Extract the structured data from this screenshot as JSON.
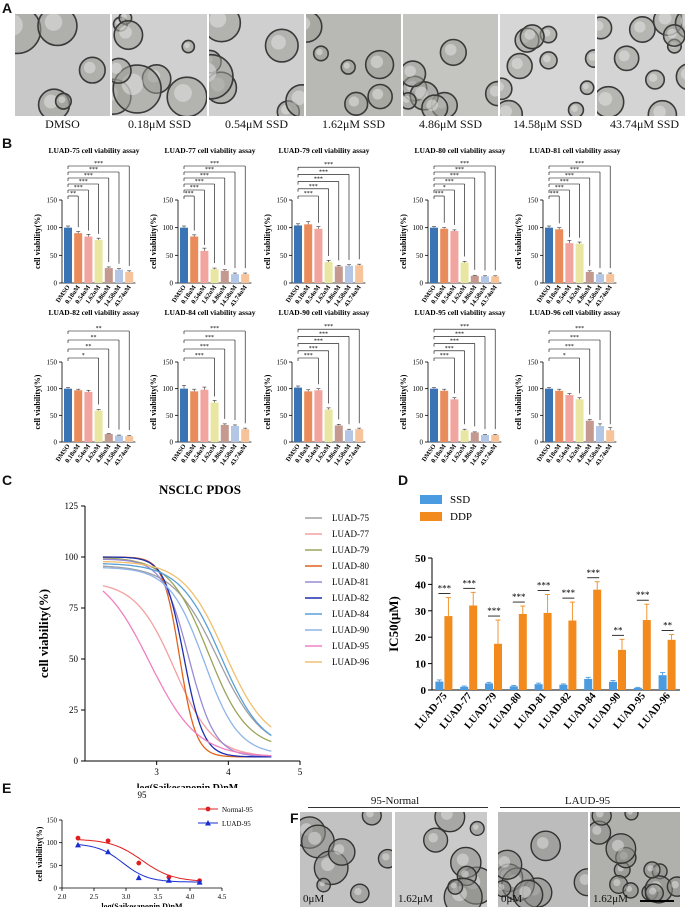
{
  "panels": {
    "A": "A",
    "B": "B",
    "C": "C",
    "D": "D",
    "E": "E",
    "F": "F"
  },
  "panelA": {
    "labels": [
      "DMSO",
      "0.18μM SSD",
      "0.54μM SSD",
      "1.62μM SSD",
      "4.86μM SSD",
      "14.58μM SSD",
      "43.74μM SSD"
    ]
  },
  "panelB": {
    "ylabel": "cell viability(%)",
    "yticks": [
      "0",
      "50",
      "100",
      "150"
    ],
    "xticks": [
      "DMSO",
      "0.18uM",
      "0.54uM",
      "1.62uM",
      "4.86uM",
      "14.58uM",
      "43.74uM"
    ],
    "bar_colors": [
      "#3a74b4",
      "#e98b5a",
      "#f2a59e",
      "#e8e6a0",
      "#c49a90",
      "#b4c6e6",
      "#f7c39a"
    ]
  },
  "chart_data": [
    {
      "type": "bar",
      "id": "luad75",
      "title": "LUAD-75 cell viability assay",
      "categories": [
        "DMSO",
        "0.18uM",
        "0.54uM",
        "1.62uM",
        "4.86uM",
        "14.58uM",
        "43.74uM"
      ],
      "values": [
        100,
        90,
        84,
        78,
        27,
        24,
        20
      ],
      "errors": [
        3,
        3,
        4,
        3,
        2,
        2,
        2
      ],
      "ylim": [
        0,
        150
      ],
      "significance": [
        "**",
        "***",
        "***",
        "***",
        "***",
        "***"
      ]
    },
    {
      "type": "bar",
      "id": "luad77",
      "title": "LUAD-77 cell viability assay",
      "categories": [
        "DMSO",
        "0.18uM",
        "0.54uM",
        "1.62uM",
        "4.86uM",
        "14.58uM",
        "43.74uM"
      ],
      "values": [
        100,
        84,
        58,
        25,
        22,
        16,
        16
      ],
      "errors": [
        3,
        3,
        5,
        2,
        2,
        2,
        2
      ],
      "ylim": [
        0,
        150
      ],
      "significance": [
        "***",
        "***",
        "***",
        "***",
        "***",
        "***"
      ]
    },
    {
      "type": "bar",
      "id": "luad79",
      "title": "LUAD-79 cell viability assay",
      "categories": [
        "DMSO",
        "0.18uM",
        "0.54uM",
        "1.62uM",
        "4.86uM",
        "14.58uM",
        "43.74uM"
      ],
      "values": [
        104,
        106,
        98,
        38,
        30,
        31,
        32
      ],
      "errors": [
        3,
        5,
        4,
        3,
        2,
        2,
        2
      ],
      "ylim": [
        0,
        150
      ],
      "significance": [
        "***",
        "***",
        "***",
        "***",
        "***"
      ]
    },
    {
      "type": "bar",
      "id": "luad80",
      "title": "LUAD-80 cell viability assay",
      "categories": [
        "DMSO",
        "0.18uM",
        "0.54uM",
        "1.62uM",
        "4.86uM",
        "14.58uM",
        "43.74uM"
      ],
      "values": [
        100,
        98,
        94,
        37,
        13,
        12,
        12
      ],
      "errors": [
        2,
        2,
        2,
        2,
        1,
        1,
        1
      ],
      "ylim": [
        0,
        150
      ],
      "significance": [
        "***",
        "*",
        "***",
        "***",
        "***",
        "***"
      ]
    },
    {
      "type": "bar",
      "id": "luad81",
      "title": "LUAD-81 cell viability assay",
      "categories": [
        "DMSO",
        "0.18uM",
        "0.54uM",
        "1.62uM",
        "4.86uM",
        "14.58uM",
        "43.74uM"
      ],
      "values": [
        100,
        97,
        72,
        71,
        20,
        16,
        16
      ],
      "errors": [
        3,
        3,
        5,
        3,
        2,
        2,
        2
      ],
      "ylim": [
        0,
        150
      ],
      "significance": [
        "***",
        "***",
        "***",
        "***",
        "***",
        "***"
      ]
    },
    {
      "type": "bar",
      "id": "luad82",
      "title": "LUAD-82 cell viability assay",
      "categories": [
        "DMSO",
        "0.18uM",
        "0.54uM",
        "1.62uM",
        "4.86uM",
        "14.58uM",
        "43.74uM"
      ],
      "values": [
        100,
        97,
        94,
        59,
        15,
        12,
        11
      ],
      "errors": [
        2,
        2,
        3,
        2,
        1,
        1,
        1
      ],
      "ylim": [
        0,
        150
      ],
      "significance": [
        "*",
        "**",
        "**",
        "**"
      ]
    },
    {
      "type": "bar",
      "id": "luad84",
      "title": "LUAD-84 cell viability assay",
      "categories": [
        "DMSO",
        "0.18uM",
        "0.54uM",
        "1.62uM",
        "4.86uM",
        "14.58uM",
        "43.74uM"
      ],
      "values": [
        100,
        95,
        98,
        74,
        32,
        30,
        24
      ],
      "errors": [
        6,
        4,
        5,
        4,
        2,
        2,
        2
      ],
      "ylim": [
        0,
        150
      ],
      "significance": [
        "***",
        "***",
        "***",
        "***"
      ]
    },
    {
      "type": "bar",
      "id": "luad90",
      "title": "LUAD-90 cell viability assay",
      "categories": [
        "DMSO",
        "0.18uM",
        "0.54uM",
        "1.62uM",
        "4.86uM",
        "14.58uM",
        "43.74uM"
      ],
      "values": [
        102,
        95,
        97,
        61,
        31,
        22,
        24
      ],
      "errors": [
        3,
        3,
        3,
        3,
        2,
        2,
        2
      ],
      "ylim": [
        0,
        150
      ],
      "significance": [
        "***",
        "***",
        "***",
        "***",
        "***"
      ]
    },
    {
      "type": "bar",
      "id": "luad95",
      "title": "LUAD-95 cell viability assay",
      "categories": [
        "DMSO",
        "0.18uM",
        "0.54uM",
        "1.62uM",
        "4.86uM",
        "14.58uM",
        "43.74uM"
      ],
      "values": [
        100,
        96,
        80,
        22,
        18,
        13,
        13
      ],
      "errors": [
        2,
        3,
        3,
        2,
        1,
        1,
        1
      ],
      "ylim": [
        0,
        150
      ],
      "significance": [
        "***",
        "***",
        "***",
        "***",
        "***"
      ]
    },
    {
      "type": "bar",
      "id": "luad96",
      "title": "LUAD-96 cell viability assay",
      "categories": [
        "DMSO",
        "0.18uM",
        "0.54uM",
        "1.62uM",
        "4.86uM",
        "14.58uM",
        "43.74uM"
      ],
      "values": [
        100,
        96,
        88,
        80,
        40,
        30,
        22
      ],
      "errors": [
        2,
        3,
        3,
        3,
        2,
        4,
        5
      ],
      "ylim": [
        0,
        150
      ],
      "significance": [
        "*",
        "***",
        "***",
        "***"
      ]
    },
    {
      "type": "line",
      "id": "nsclc",
      "title": "NSCLC PDOS",
      "xlabel": "log(Saikosaponin D)nM",
      "ylabel": "cell viability(%)",
      "xlim": [
        2,
        5
      ],
      "ylim": [
        0,
        125
      ],
      "xticks": [
        3,
        4,
        5
      ],
      "yticks": [
        0,
        25,
        50,
        75,
        100,
        125
      ],
      "series": [
        {
          "name": "LUAD-75",
          "color": "#a0a0a0",
          "top": 96,
          "bottom": 5,
          "ec50": 3.85,
          "hill": 1.4
        },
        {
          "name": "LUAD-77",
          "color": "#f4a0a0",
          "top": 88,
          "bottom": 2,
          "ec50": 3.25,
          "hill": 1.6
        },
        {
          "name": "LUAD-79",
          "color": "#9aa55a",
          "top": 100,
          "bottom": 6,
          "ec50": 3.72,
          "hill": 1.6
        },
        {
          "name": "LUAD-80",
          "color": "#e2621a",
          "top": 100,
          "bottom": 2,
          "ec50": 3.32,
          "hill": 3.8
        },
        {
          "name": "LUAD-81",
          "color": "#9a8ad6",
          "top": 99,
          "bottom": 2,
          "ec50": 3.45,
          "hill": 2.4
        },
        {
          "name": "LUAD-82",
          "color": "#1c2fb0",
          "top": 100,
          "bottom": 2,
          "ec50": 3.38,
          "hill": 3.2
        },
        {
          "name": "LUAD-84",
          "color": "#5aa0d8",
          "top": 97,
          "bottom": 5,
          "ec50": 3.9,
          "hill": 1.5
        },
        {
          "name": "LUAD-90",
          "color": "#8fb4e8",
          "top": 95,
          "bottom": 3,
          "ec50": 3.66,
          "hill": 1.8
        },
        {
          "name": "LUAD-95",
          "color": "#f080c0",
          "top": 95,
          "bottom": 2,
          "ec50": 2.9,
          "hill": 1.3
        },
        {
          "name": "LUAD-96",
          "color": "#f0c070",
          "top": 98,
          "bottom": 8,
          "ec50": 3.95,
          "hill": 1.5
        }
      ]
    },
    {
      "type": "bar",
      "id": "ic50",
      "ylabel": "IC50(μM)",
      "ylim": [
        0,
        50
      ],
      "yticks": [
        0,
        10,
        20,
        30,
        40,
        50
      ],
      "categories": [
        "LUAD-75",
        "LUAD-77",
        "LUAD-79",
        "LUAD-80",
        "LUAD-81",
        "LUAD-82",
        "LUAD-84",
        "LUAD-90",
        "LUAD-95",
        "LUAD-96"
      ],
      "series": [
        {
          "name": "SSD",
          "color": "#4a9be0",
          "values": [
            3.2,
            1.2,
            2.5,
            1.4,
            2.2,
            2.0,
            4.2,
            3.1,
            0.8,
            5.6
          ],
          "errors": [
            0.6,
            0.3,
            0.4,
            0.3,
            0.4,
            0.3,
            0.6,
            0.5,
            0.2,
            1.0
          ]
        },
        {
          "name": "DDP",
          "color": "#f28a1e",
          "values": [
            28,
            32,
            17.5,
            28.8,
            29.2,
            26.3,
            38,
            15.2,
            26.5,
            19
          ],
          "errors": [
            7,
            5,
            9,
            3,
            7,
            7,
            3,
            4,
            6,
            2
          ]
        }
      ],
      "significance": [
        "***",
        "***",
        "***",
        "***",
        "***",
        "***",
        "***",
        "**",
        "***",
        "**"
      ]
    },
    {
      "type": "scatter",
      "id": "e",
      "title": "95",
      "xlabel": "log(Saikosaponin D)nM",
      "ylabel": "cell viability(%)",
      "xlim": [
        2,
        4.5
      ],
      "ylim": [
        0,
        150
      ],
      "xticks": [
        2.0,
        2.5,
        3.0,
        3.5,
        4.0,
        4.5
      ],
      "yticks": [
        0,
        50,
        100,
        150
      ],
      "series": [
        {
          "name": "Normal-95",
          "color": "#e02020",
          "marker": "circle",
          "x": [
            2.25,
            2.72,
            3.2,
            3.67,
            4.15
          ],
          "y": [
            110,
            104,
            55,
            24,
            16
          ],
          "fit": {
            "top": 108,
            "bottom": 14,
            "ec50": 3.25,
            "hill": 1.8
          }
        },
        {
          "name": "LUAD-95",
          "color": "#1a2fd0",
          "marker": "triangle",
          "x": [
            2.25,
            2.72,
            3.2,
            3.67,
            4.15
          ],
          "y": [
            95,
            80,
            23,
            17,
            13
          ],
          "fit": {
            "top": 98,
            "bottom": 13,
            "ec50": 2.95,
            "hill": 2.2
          }
        }
      ]
    }
  ],
  "panelF": {
    "groups": [
      "95-Normal",
      "LAUD-95"
    ],
    "labels": [
      "0μM",
      "1.62μM",
      "0μM",
      "1.62μM"
    ]
  }
}
